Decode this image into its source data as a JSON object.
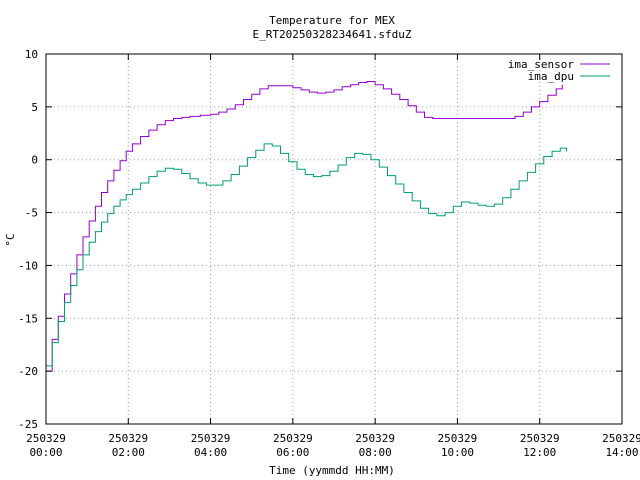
{
  "chart_data": {
    "type": "line",
    "title": "Temperature for MEX",
    "subtitle": "E_RT20250328234641.sfduZ",
    "xlabel": "Time (yymmdd HH:MM)",
    "ylabel": "°C",
    "xlim": [
      0,
      14
    ],
    "ylim": [
      -25,
      10
    ],
    "grid": true,
    "legend_position": "top-right",
    "x_ticks": [
      {
        "value": 0,
        "date": "250329",
        "time": "00:00"
      },
      {
        "value": 2,
        "date": "250329",
        "time": "02:00"
      },
      {
        "value": 4,
        "date": "250329",
        "time": "04:00"
      },
      {
        "value": 6,
        "date": "250329",
        "time": "06:00"
      },
      {
        "value": 8,
        "date": "250329",
        "time": "08:00"
      },
      {
        "value": 10,
        "date": "250329",
        "time": "10:00"
      },
      {
        "value": 12,
        "date": "250329",
        "time": "12:00"
      },
      {
        "value": 14,
        "date": "250329",
        "time": "14:00"
      }
    ],
    "y_ticks": [
      10,
      5,
      0,
      -5,
      -10,
      -15,
      -20,
      -25
    ],
    "series": [
      {
        "name": "ima_sensor",
        "color": "#9400d3",
        "x": [
          0.0,
          0.15,
          0.3,
          0.45,
          0.6,
          0.75,
          0.9,
          1.05,
          1.2,
          1.35,
          1.5,
          1.65,
          1.8,
          1.95,
          2.1,
          2.3,
          2.5,
          2.7,
          2.9,
          3.1,
          3.3,
          3.5,
          3.75,
          4.0,
          4.2,
          4.4,
          4.6,
          4.8,
          5.0,
          5.2,
          5.4,
          5.6,
          5.8,
          6.0,
          6.2,
          6.4,
          6.6,
          6.8,
          7.0,
          7.2,
          7.4,
          7.6,
          7.8,
          8.0,
          8.2,
          8.4,
          8.6,
          8.8,
          9.0,
          9.2,
          9.4,
          9.6,
          9.8,
          10.0,
          10.2,
          10.4,
          10.6,
          10.8,
          11.0,
          11.2,
          11.4,
          11.6,
          11.8,
          12.0,
          12.2,
          12.4,
          12.55
        ],
        "y": [
          -20.0,
          -17.0,
          -14.8,
          -12.7,
          -10.8,
          -9.0,
          -7.3,
          -5.8,
          -4.4,
          -3.1,
          -2.0,
          -1.0,
          -0.1,
          0.8,
          1.5,
          2.2,
          2.8,
          3.3,
          3.7,
          3.9,
          4.0,
          4.1,
          4.2,
          4.3,
          4.5,
          4.8,
          5.2,
          5.7,
          6.2,
          6.7,
          7.0,
          7.0,
          7.0,
          6.8,
          6.6,
          6.4,
          6.3,
          6.4,
          6.6,
          6.9,
          7.1,
          7.3,
          7.4,
          7.1,
          6.7,
          6.2,
          5.7,
          5.1,
          4.5,
          4.0,
          3.9,
          3.9,
          3.9,
          3.9,
          3.9,
          3.9,
          3.9,
          3.9,
          3.9,
          3.9,
          4.1,
          4.5,
          5.0,
          5.5,
          6.1,
          6.7,
          7.1
        ]
      },
      {
        "name": "ima_dpu",
        "color": "#009e73",
        "x": [
          0.0,
          0.15,
          0.3,
          0.45,
          0.6,
          0.75,
          0.9,
          1.05,
          1.2,
          1.35,
          1.5,
          1.65,
          1.8,
          1.95,
          2.1,
          2.3,
          2.5,
          2.7,
          2.9,
          3.1,
          3.3,
          3.5,
          3.7,
          3.9,
          4.1,
          4.3,
          4.5,
          4.7,
          4.9,
          5.1,
          5.3,
          5.5,
          5.7,
          5.9,
          6.1,
          6.3,
          6.5,
          6.7,
          6.9,
          7.1,
          7.3,
          7.5,
          7.7,
          7.9,
          8.1,
          8.3,
          8.5,
          8.7,
          8.9,
          9.1,
          9.3,
          9.5,
          9.7,
          9.9,
          10.1,
          10.3,
          10.5,
          10.7,
          10.9,
          11.1,
          11.3,
          11.5,
          11.7,
          11.9,
          12.1,
          12.3,
          12.5,
          12.65
        ],
        "y": [
          -19.5,
          -17.3,
          -15.3,
          -13.5,
          -11.9,
          -10.4,
          -9.0,
          -7.8,
          -6.8,
          -5.9,
          -5.1,
          -4.4,
          -3.8,
          -3.3,
          -2.8,
          -2.2,
          -1.6,
          -1.1,
          -0.8,
          -0.9,
          -1.3,
          -1.8,
          -2.2,
          -2.4,
          -2.4,
          -2.0,
          -1.4,
          -0.6,
          0.2,
          0.9,
          1.5,
          1.3,
          0.6,
          -0.2,
          -0.9,
          -1.4,
          -1.6,
          -1.5,
          -1.1,
          -0.5,
          0.2,
          0.6,
          0.5,
          0.0,
          -0.7,
          -1.5,
          -2.3,
          -3.1,
          -3.9,
          -4.6,
          -5.1,
          -5.3,
          -5.0,
          -4.4,
          -4.0,
          -4.1,
          -4.3,
          -4.4,
          -4.2,
          -3.6,
          -2.8,
          -2.0,
          -1.2,
          -0.4,
          0.3,
          0.8,
          1.1,
          0.8
        ]
      }
    ]
  }
}
